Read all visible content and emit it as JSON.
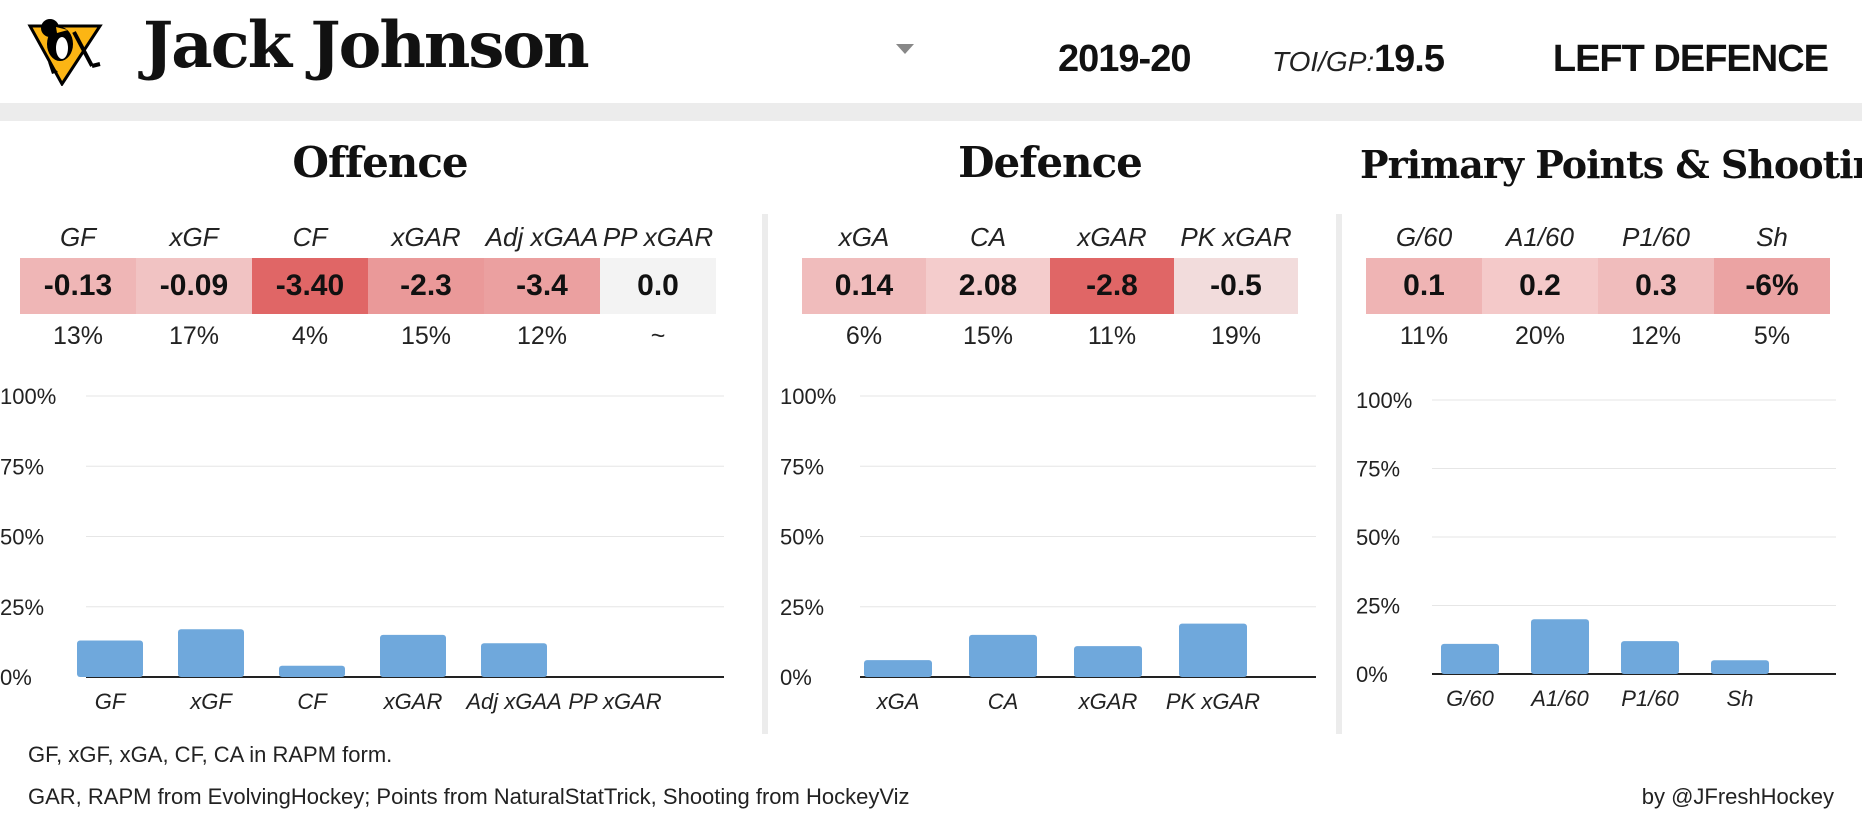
{
  "header": {
    "player_name": "Jack Johnson",
    "season": "2019-20",
    "toi_label": "TOI/GP:",
    "toi_value": "19.5",
    "position": "LEFT DEFENCE",
    "team_logo": "penguins-logo"
  },
  "colors": {
    "bar": "#6fa8dc",
    "heat_strong": "#e06666",
    "heat_mid": "#ea9999",
    "heat_light": "#f4cccc",
    "heat_neutral": "#f3f3f3",
    "divider": "#ececec"
  },
  "sections": [
    {
      "title": "Offence",
      "metrics": [
        {
          "label": "GF",
          "value": "-0.13",
          "pct": "13%",
          "color": "#efb6b6"
        },
        {
          "label": "xGF",
          "value": "-0.09",
          "pct": "17%",
          "color": "#f1c3c3"
        },
        {
          "label": "CF",
          "value": "-3.40",
          "pct": "4%",
          "color": "#e06666"
        },
        {
          "label": "xGAR",
          "value": "-2.3",
          "pct": "15%",
          "color": "#ea9999"
        },
        {
          "label": "Adj xGAA",
          "value": "-3.4",
          "pct": "12%",
          "color": "#eba0a0"
        },
        {
          "label": "PP xGAR",
          "value": "0.0",
          "pct": "~",
          "color": "#f3f3f3"
        }
      ]
    },
    {
      "title": "Defence",
      "metrics": [
        {
          "label": "xGA",
          "value": "0.14",
          "pct": "6%",
          "color": "#f0bcbc"
        },
        {
          "label": "CA",
          "value": "2.08",
          "pct": "15%",
          "color": "#f4cccc"
        },
        {
          "label": "xGAR",
          "value": "-2.8",
          "pct": "11%",
          "color": "#e06666"
        },
        {
          "label": "PK xGAR",
          "value": "-0.5",
          "pct": "19%",
          "color": "#f2dcdc"
        }
      ]
    },
    {
      "title": "Primary Points & Shooting",
      "metrics": [
        {
          "label": "G/60",
          "value": "0.1",
          "pct": "11%",
          "color": "#efb4b4"
        },
        {
          "label": "A1/60",
          "value": "0.2",
          "pct": "20%",
          "color": "#f4c9c9"
        },
        {
          "label": "P1/60",
          "value": "0.3",
          "pct": "12%",
          "color": "#f0bcbc"
        },
        {
          "label": "Sh",
          "value": "-6%",
          "pct": "5%",
          "color": "#eba3a3"
        }
      ]
    }
  ],
  "chart_data": [
    {
      "type": "bar",
      "title": "Offence",
      "categories": [
        "GF",
        "xGF",
        "CF",
        "xGAR",
        "Adj xGAA",
        "PP xGAR"
      ],
      "values": [
        13,
        17,
        4,
        15,
        12,
        0
      ],
      "yticks": [
        "0%",
        "25%",
        "50%",
        "75%",
        "100%"
      ],
      "ylim": [
        0,
        100
      ],
      "grid": true
    },
    {
      "type": "bar",
      "title": "Defence",
      "categories": [
        "xGA",
        "CA",
        "xGAR",
        "PK xGAR"
      ],
      "values": [
        6,
        15,
        11,
        19
      ],
      "yticks": [
        "0%",
        "25%",
        "50%",
        "75%",
        "100%"
      ],
      "ylim": [
        0,
        100
      ],
      "grid": true
    },
    {
      "type": "bar",
      "title": "Primary Points & Shooting",
      "categories": [
        "G/60",
        "A1/60",
        "P1/60",
        "Sh"
      ],
      "values": [
        11,
        20,
        12,
        5
      ],
      "yticks": [
        "0%",
        "25%",
        "50%",
        "75%",
        "100%"
      ],
      "ylim": [
        0,
        100
      ],
      "grid": true
    }
  ],
  "footer": {
    "note_1": "GF, xGF, xGA, CF, CA in RAPM form.",
    "note_2": "GAR, RAPM from EvolvingHockey; Points from NaturalStatTrick, Shooting from HockeyViz",
    "credit": "by @JFreshHockey"
  }
}
